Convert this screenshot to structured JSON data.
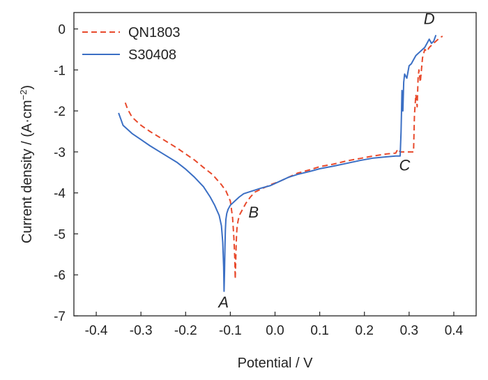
{
  "chart_data": {
    "type": "line",
    "xlabel": "Potential / V",
    "ylabel_main": "Current density / (A·cm",
    "ylabel_sup": "−2",
    "ylabel_tail": ")",
    "xlim": [
      -0.45,
      0.45
    ],
    "ylim": [
      -7,
      0.4
    ],
    "xticks": [
      -0.4,
      -0.3,
      -0.2,
      -0.1,
      0.0,
      0.1,
      0.2,
      0.3,
      0.4
    ],
    "xtick_labels": [
      "-0.4",
      "-0.3",
      "-0.2",
      "-0.1",
      "0.0",
      "0.1",
      "0.2",
      "0.3",
      "0.4"
    ],
    "yticks": [
      0,
      -1,
      -2,
      -3,
      -4,
      -5,
      -6,
      -7
    ],
    "ytick_labels": [
      "0",
      "-1",
      "-2",
      "-3",
      "-4",
      "-5",
      "-6",
      "-7"
    ],
    "grid": false,
    "legend_position": "top-left",
    "series": [
      {
        "name": "QN1803",
        "color": "#e8492b",
        "style": "dashed",
        "x": [
          -0.335,
          -0.33,
          -0.32,
          -0.3,
          -0.28,
          -0.25,
          -0.22,
          -0.2,
          -0.18,
          -0.16,
          -0.14,
          -0.12,
          -0.11,
          -0.1,
          -0.095,
          -0.092,
          -0.09,
          -0.089,
          -0.088,
          -0.087,
          -0.086,
          -0.085,
          -0.083,
          -0.08,
          -0.075,
          -0.07,
          -0.065,
          -0.055,
          -0.045,
          -0.03,
          -0.01,
          0.01,
          0.03,
          0.05,
          0.08,
          0.1,
          0.13,
          0.16,
          0.19,
          0.22,
          0.25,
          0.27,
          0.275,
          0.28,
          0.29,
          0.3,
          0.31,
          0.312,
          0.315,
          0.318,
          0.32,
          0.322,
          0.325,
          0.33,
          0.335,
          0.34,
          0.345,
          0.35,
          0.355,
          0.36,
          0.365,
          0.37,
          0.375
        ],
        "y": [
          -1.8,
          -1.95,
          -2.15,
          -2.35,
          -2.5,
          -2.7,
          -2.9,
          -3.05,
          -3.2,
          -3.38,
          -3.55,
          -3.8,
          -3.95,
          -4.2,
          -4.6,
          -5.1,
          -5.6,
          -6.1,
          -5.7,
          -5.3,
          -5.0,
          -4.85,
          -4.7,
          -4.55,
          -4.45,
          -4.35,
          -4.25,
          -4.1,
          -3.98,
          -3.9,
          -3.8,
          -3.72,
          -3.62,
          -3.52,
          -3.43,
          -3.36,
          -3.3,
          -3.22,
          -3.16,
          -3.1,
          -3.05,
          -3.03,
          -2.93,
          -3.0,
          -3.0,
          -3.0,
          -3.0,
          -2.1,
          -1.6,
          -1.9,
          -1.2,
          -1.0,
          -1.3,
          -0.7,
          -0.5,
          -0.55,
          -0.45,
          -0.4,
          -0.35,
          -0.3,
          -0.25,
          -0.2,
          -0.18
        ]
      },
      {
        "name": "S30408",
        "color": "#3b6fc4",
        "style": "solid",
        "x": [
          -0.35,
          -0.345,
          -0.34,
          -0.33,
          -0.32,
          -0.3,
          -0.28,
          -0.25,
          -0.22,
          -0.2,
          -0.18,
          -0.16,
          -0.145,
          -0.135,
          -0.125,
          -0.12,
          -0.117,
          -0.115,
          -0.114,
          -0.113,
          -0.112,
          -0.111,
          -0.11,
          -0.108,
          -0.105,
          -0.1,
          -0.09,
          -0.08,
          -0.07,
          -0.05,
          -0.03,
          -0.01,
          0.01,
          0.03,
          0.05,
          0.08,
          0.1,
          0.13,
          0.16,
          0.19,
          0.22,
          0.25,
          0.27,
          0.28,
          0.282,
          0.284,
          0.286,
          0.288,
          0.29,
          0.295,
          0.3,
          0.305,
          0.31,
          0.315,
          0.32,
          0.325,
          0.33,
          0.335,
          0.34,
          0.345,
          0.35,
          0.355,
          0.36
        ],
        "y": [
          -2.05,
          -2.2,
          -2.35,
          -2.45,
          -2.55,
          -2.7,
          -2.85,
          -3.05,
          -3.25,
          -3.42,
          -3.62,
          -3.85,
          -4.1,
          -4.3,
          -4.55,
          -4.8,
          -5.2,
          -5.8,
          -6.4,
          -5.9,
          -5.3,
          -4.9,
          -4.65,
          -4.5,
          -4.4,
          -4.3,
          -4.2,
          -4.1,
          -4.02,
          -3.95,
          -3.88,
          -3.82,
          -3.72,
          -3.62,
          -3.55,
          -3.47,
          -3.41,
          -3.35,
          -3.28,
          -3.21,
          -3.15,
          -3.12,
          -3.1,
          -3.1,
          -2.5,
          -1.5,
          -2.0,
          -1.3,
          -1.1,
          -1.2,
          -0.9,
          -0.85,
          -0.75,
          -0.65,
          -0.6,
          -0.55,
          -0.5,
          -0.45,
          -0.35,
          -0.25,
          -0.35,
          -0.3,
          -0.15
        ]
      }
    ],
    "annotations": [
      {
        "label": "A",
        "x": -0.115,
        "y": -6.8
      },
      {
        "label": "B",
        "x": -0.048,
        "y": -4.6
      },
      {
        "label": "C",
        "x": 0.29,
        "y": -3.45
      },
      {
        "label": "D",
        "x": 0.345,
        "y": 0.12
      }
    ]
  }
}
